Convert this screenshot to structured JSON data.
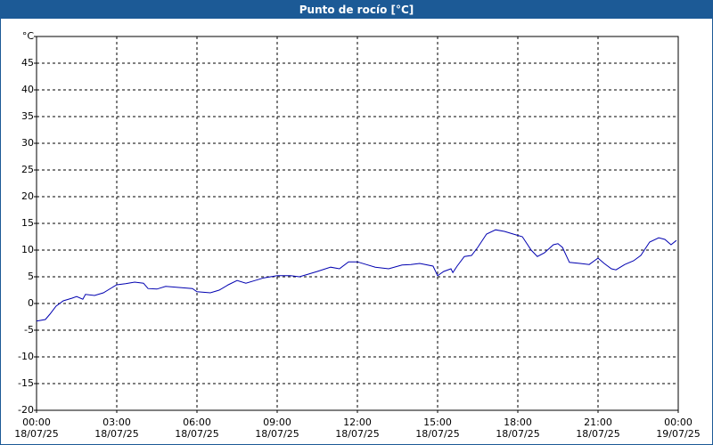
{
  "chart_data": {
    "type": "line",
    "title": "Punto de rocío [°C]",
    "xlim": [
      0,
      24
    ],
    "xticks": [
      {
        "value": 0,
        "label": "00:00\n18/07/25"
      },
      {
        "value": 3,
        "label": "03:00\n18/07/25"
      },
      {
        "value": 6,
        "label": "06:00\n18/07/25"
      },
      {
        "value": 9,
        "label": "09:00\n18/07/25"
      },
      {
        "value": 12,
        "label": "12:00\n18/07/25"
      },
      {
        "value": 15,
        "label": "15:00\n18/07/25"
      },
      {
        "value": 18,
        "label": "18:00\n18/07/25"
      },
      {
        "value": 21,
        "label": "21:00\n18/07/25"
      },
      {
        "value": 24,
        "label": "00:00\n19/07/25"
      }
    ],
    "ylim": [
      -20,
      50
    ],
    "yticks": [
      -20,
      -15,
      -10,
      -5,
      0,
      5,
      10,
      15,
      20,
      25,
      30,
      35,
      40,
      45,
      {
        "value": 50,
        "label": "°C"
      }
    ],
    "grid": true,
    "series": [
      {
        "color": "#0000b0",
        "x": [
          0,
          0.33,
          0.5,
          0.73,
          1,
          1.33,
          1.5,
          1.73,
          1.83,
          2.17,
          2.5,
          2.83,
          3,
          3.33,
          3.67,
          4,
          4.17,
          4.5,
          4.83,
          5.33,
          5.83,
          6,
          6.5,
          6.83,
          7.17,
          7.5,
          7.83,
          8.17,
          8.5,
          9,
          9.5,
          9.83,
          10.17,
          10.5,
          11,
          11.33,
          11.67,
          12,
          12.33,
          12.67,
          13.17,
          13.67,
          14,
          14.33,
          14.83,
          15,
          15.23,
          15.5,
          15.57,
          15.73,
          16,
          16.27,
          16.5,
          16.83,
          17.17,
          17.5,
          17.83,
          18.17,
          18.5,
          18.73,
          19,
          19.33,
          19.5,
          19.67,
          19.93,
          20.33,
          20.67,
          21,
          21.23,
          21.5,
          21.67,
          22,
          22.33,
          22.6,
          22.93,
          23.27,
          23.5,
          23.73,
          23.93
        ],
        "values": [
          -3.3,
          -3,
          -2,
          -0.5,
          0.5,
          1,
          1.3,
          0.8,
          1.7,
          1.5,
          2,
          3,
          3.5,
          3.7,
          4,
          3.8,
          2.8,
          2.7,
          3.2,
          3,
          2.8,
          2.2,
          2,
          2.5,
          3.5,
          4.3,
          3.8,
          4.3,
          4.8,
          5.2,
          5.2,
          5,
          5.5,
          6,
          6.8,
          6.5,
          7.8,
          7.8,
          7.3,
          6.8,
          6.5,
          7.2,
          7.3,
          7.5,
          7,
          5.2,
          6,
          6.5,
          5.8,
          7,
          8.8,
          9,
          10.5,
          13,
          13.8,
          13.5,
          13,
          12.5,
          10,
          8.8,
          9.5,
          11,
          11.2,
          10.5,
          7.7,
          7.5,
          7.3,
          8.5,
          7.5,
          6.5,
          6.3,
          7.3,
          8,
          9,
          11.5,
          12.3,
          12,
          11,
          11.8
        ]
      }
    ]
  }
}
